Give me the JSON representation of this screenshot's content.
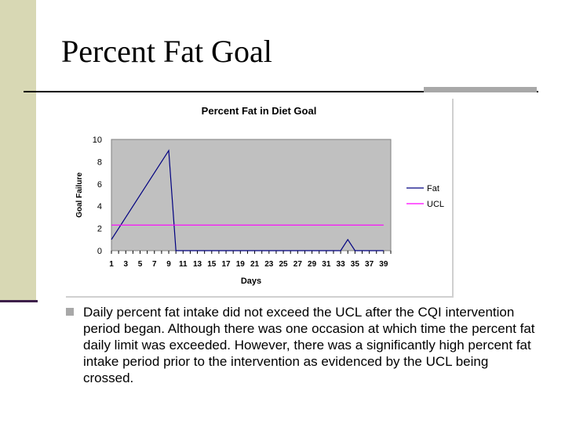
{
  "slide": {
    "title": "Percent Fat Goal",
    "bullet": "Daily percent fat intake did not exceed the UCL after the CQI intervention period began.  Although there was one occasion at which time the percent fat daily limit was exceeded.  However, there was a significantly high percent fat intake period prior to the intervention as evidenced by the UCL being crossed."
  },
  "colors": {
    "plot_background": "#c0c0c0",
    "fat_line": "#000080",
    "ucl_line": "#ff00ff",
    "accent_bar": "#d8d8b4"
  },
  "chart_data": {
    "type": "line",
    "title": "Percent Fat in Diet Goal",
    "xlabel": "Days",
    "ylabel": "Goal Failure",
    "ylim": [
      0,
      10
    ],
    "yticks": [
      0,
      2,
      4,
      6,
      8,
      10
    ],
    "xlim": [
      1,
      40
    ],
    "xticks": [
      1,
      3,
      5,
      7,
      9,
      11,
      13,
      15,
      17,
      19,
      21,
      23,
      25,
      27,
      29,
      31,
      33,
      35,
      37,
      39
    ],
    "legend_position": "right",
    "series": [
      {
        "name": "Fat",
        "x": [
          1,
          9,
          10,
          11,
          12,
          13,
          14,
          15,
          16,
          17,
          18,
          19,
          20,
          21,
          22,
          23,
          24,
          25,
          26,
          27,
          28,
          29,
          30,
          31,
          32,
          33,
          34,
          35,
          36,
          37,
          38,
          39
        ],
        "values": [
          1,
          9,
          0,
          0,
          0,
          0,
          0,
          0,
          0,
          0,
          0,
          0,
          0,
          0,
          0,
          0,
          0,
          0,
          0,
          0,
          0,
          0,
          0,
          0,
          0,
          0,
          1,
          0,
          0,
          0,
          0,
          0
        ]
      },
      {
        "name": "UCL",
        "x": [
          1,
          39
        ],
        "values": [
          2.3,
          2.3
        ]
      }
    ]
  }
}
